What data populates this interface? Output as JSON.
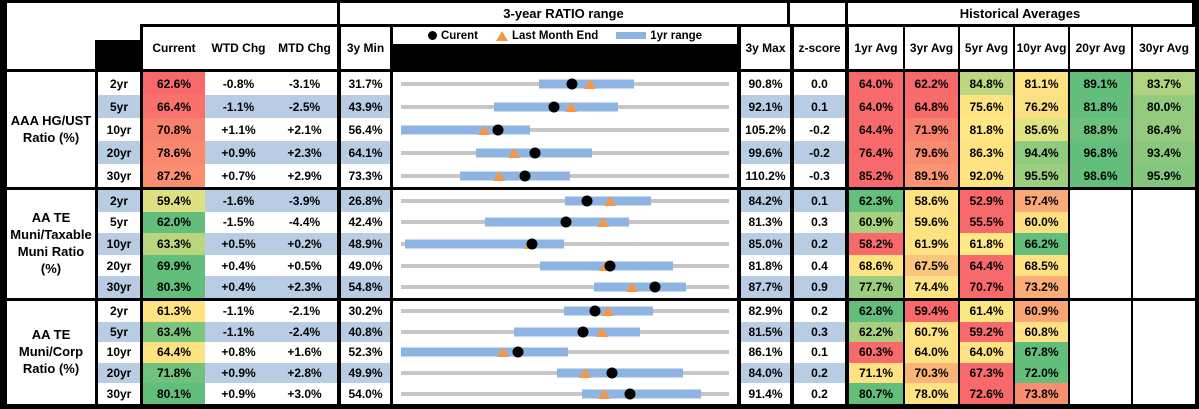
{
  "header": {
    "range_section_title": "3-year RATIO range",
    "hist_section_title": "Historical Averages",
    "col_current": "Current",
    "col_wtd": "WTD Chg",
    "col_mtd": "MTD Chg",
    "col_min": "3y Min",
    "col_max": "3y Max",
    "col_z": "z-score",
    "avg_cols": [
      "1yr Avg",
      "3yr Avg",
      "5yr Avg",
      "10yr Avg",
      "20yr Avg",
      "30yr Avg"
    ],
    "legend": [
      {
        "marker": "black-dot",
        "label": "Curent"
      },
      {
        "marker": "orange-triangle",
        "label": "Last Month End"
      },
      {
        "marker": "blue-bar",
        "label": "1yr range"
      }
    ]
  },
  "colors": {
    "band_blue": "#B8CCE4",
    "range_bar_blue": "#8DB4E2",
    "track_gray": "#C6C6C6",
    "marker_black": "#000000",
    "triangle_orange": "#F79646",
    "scale_red": "#F8696B",
    "scale_yellow": "#FFE383",
    "scale_green": "#63BE7B"
  },
  "chart_data": {
    "type": "table",
    "description": "Ratio table with dot-and-range strip charts; range values in percent",
    "groups": [
      {
        "label_lines": [
          "AAA HG/UST",
          "Ratio (%)"
        ],
        "rows": [
          {
            "tenor": "2yr",
            "current": "62.6%",
            "current_bg": "#F8696B",
            "wtd": "-0.8%",
            "mtd": "-3.1%",
            "min": "31.7%",
            "max": "90.8%",
            "z": "0.0",
            "range": {
              "axis_min": 31.7,
              "axis_max": 90.8,
              "bar_lo": 56.5,
              "bar_hi": 73.7,
              "current": 62.6,
              "last_month": 65.7
            },
            "avgs": [
              [
                "64.0%",
                "#F8696B"
              ],
              [
                "62.2%",
                "#F8696B"
              ],
              [
                "84.8%",
                "#BCD780"
              ],
              [
                "81.1%",
                "#FFE383"
              ],
              [
                "89.1%",
                "#63BE7B"
              ],
              [
                "83.7%",
                "#AFD37F"
              ]
            ]
          },
          {
            "tenor": "5yr",
            "current": "66.4%",
            "current_bg": "#F8716C",
            "wtd": "-1.1%",
            "mtd": "-2.5%",
            "min": "43.9%",
            "max": "92.1%",
            "z": "0.1",
            "range": {
              "axis_min": 43.9,
              "axis_max": 92.1,
              "bar_lo": 57.5,
              "bar_hi": 75.8,
              "current": 66.4,
              "last_month": 68.9
            },
            "avgs": [
              [
                "64.0%",
                "#F8696B"
              ],
              [
                "64.8%",
                "#F86D6C"
              ],
              [
                "75.6%",
                "#FFE383"
              ],
              [
                "76.2%",
                "#FBE083"
              ],
              [
                "81.8%",
                "#63BE7B"
              ],
              [
                "80.0%",
                "#92CB7E"
              ]
            ]
          },
          {
            "tenor": "10yr",
            "current": "70.8%",
            "current_bg": "#F9826F",
            "wtd": "+1.1%",
            "mtd": "+2.1%",
            "min": "56.4%",
            "max": "105.2%",
            "z": "-0.2",
            "range": {
              "axis_min": 56.4,
              "axis_max": 105.2,
              "bar_lo": 56.4,
              "bar_hi": 75.6,
              "current": 70.8,
              "last_month": 68.7
            },
            "avgs": [
              [
                "64.4%",
                "#F8696B"
              ],
              [
                "71.9%",
                "#F8806F"
              ],
              [
                "81.8%",
                "#FEE784"
              ],
              [
                "85.6%",
                "#E0E283"
              ],
              [
                "88.8%",
                "#6CC07C"
              ],
              [
                "86.4%",
                "#94CB7E"
              ]
            ]
          },
          {
            "tenor": "20yr",
            "current": "78.6%",
            "current_bg": "#F9886F",
            "wtd": "+0.9%",
            "mtd": "+2.3%",
            "min": "64.1%",
            "max": "99.6%",
            "z": "-0.2",
            "range": {
              "axis_min": 64.1,
              "axis_max": 99.6,
              "bar_lo": 72.2,
              "bar_hi": 84.8,
              "current": 78.6,
              "last_month": 76.3
            },
            "avgs": [
              [
                "76.4%",
                "#F8696B"
              ],
              [
                "79.6%",
                "#F98B71"
              ],
              [
                "86.3%",
                "#FFE383"
              ],
              [
                "94.4%",
                "#90CA7E"
              ],
              [
                "96.8%",
                "#63BE7B"
              ],
              [
                "93.4%",
                "#8AC87E"
              ]
            ]
          },
          {
            "tenor": "30yr",
            "current": "87.2%",
            "current_bg": "#F98E71",
            "wtd": "+0.7%",
            "mtd": "+2.9%",
            "min": "73.3%",
            "max": "110.2%",
            "z": "-0.3",
            "range": {
              "axis_min": 73.3,
              "axis_max": 110.2,
              "bar_lo": 79.9,
              "bar_hi": 92.3,
              "current": 87.2,
              "last_month": 84.3
            },
            "avgs": [
              [
                "85.2%",
                "#F8696B"
              ],
              [
                "89.1%",
                "#FA9473"
              ],
              [
                "92.0%",
                "#FFE383"
              ],
              [
                "95.5%",
                "#9DCE7F"
              ],
              [
                "98.6%",
                "#63BE7B"
              ],
              [
                "95.9%",
                "#84C67D"
              ]
            ]
          }
        ]
      },
      {
        "label_lines": [
          "AA TE",
          "Muni/Taxable",
          "Muni Ratio",
          "(%)"
        ],
        "rows": [
          {
            "tenor": "2yr",
            "current": "59.4%",
            "current_bg": "#DEE082",
            "wtd": "-1.6%",
            "mtd": "-3.9%",
            "min": "26.8%",
            "max": "84.2%",
            "z": "0.1",
            "range": {
              "axis_min": 26.8,
              "axis_max": 84.2,
              "bar_lo": 55.5,
              "bar_hi": 70.6,
              "current": 59.4,
              "last_month": 63.3
            },
            "avgs": [
              [
                "62.3%",
                "#66BF7B"
              ],
              [
                "58.6%",
                "#FFE383"
              ],
              [
                "52.9%",
                "#F8696B"
              ],
              [
                "57.4%",
                "#FBA976"
              ],
              null,
              null
            ]
          },
          {
            "tenor": "5yr",
            "current": "62.0%",
            "current_bg": "#63BE7B",
            "wtd": "-1.5%",
            "mtd": "-4.4%",
            "min": "42.4%",
            "max": "81.3%",
            "z": "0.3",
            "range": {
              "axis_min": 42.4,
              "axis_max": 81.3,
              "bar_lo": 52.4,
              "bar_hi": 69.5,
              "current": 62.0,
              "last_month": 66.4
            },
            "avgs": [
              [
                "60.9%",
                "#A8D07F"
              ],
              [
                "59.6%",
                "#FFE383"
              ],
              [
                "55.5%",
                "#F8696B"
              ],
              [
                "60.0%",
                "#FEDF81"
              ],
              null,
              null
            ]
          },
          {
            "tenor": "10yr",
            "current": "63.3%",
            "current_bg": "#B9D67F",
            "wtd": "+0.5%",
            "mtd": "+0.2%",
            "min": "48.9%",
            "max": "85.0%",
            "z": "0.2",
            "range": {
              "axis_min": 48.9,
              "axis_max": 85.0,
              "bar_lo": 49.3,
              "bar_hi": 66.8,
              "current": 63.3,
              "last_month": 63.1
            },
            "avgs": [
              [
                "58.2%",
                "#F8696B"
              ],
              [
                "61.9%",
                "#FFE383"
              ],
              [
                "61.8%",
                "#FEE886"
              ],
              [
                "66.2%",
                "#63BE7B"
              ],
              null,
              null
            ]
          },
          {
            "tenor": "20yr",
            "current": "69.9%",
            "current_bg": "#63BE7B",
            "wtd": "+0.4%",
            "mtd": "+0.5%",
            "min": "49.0%",
            "max": "81.8%",
            "z": "0.4",
            "range": {
              "axis_min": 49.0,
              "axis_max": 81.8,
              "bar_lo": 62.9,
              "bar_hi": 76.2,
              "current": 69.9,
              "last_month": 69.4
            },
            "avgs": [
              [
                "68.6%",
                "#FFE383"
              ],
              [
                "67.5%",
                "#FCC57D"
              ],
              [
                "64.4%",
                "#F8696B"
              ],
              [
                "68.5%",
                "#FFE182"
              ],
              null,
              null
            ]
          },
          {
            "tenor": "30yr",
            "current": "80.3%",
            "current_bg": "#63BE7B",
            "wtd": "+0.4%",
            "mtd": "+2.3%",
            "min": "54.8%",
            "max": "87.7%",
            "z": "0.9",
            "range": {
              "axis_min": 54.8,
              "axis_max": 87.7,
              "bar_lo": 74.2,
              "bar_hi": 83.4,
              "current": 80.3,
              "last_month": 78.0
            },
            "avgs": [
              [
                "77.7%",
                "#9BCD7E"
              ],
              [
                "74.4%",
                "#FFE383"
              ],
              [
                "70.7%",
                "#F8696B"
              ],
              [
                "73.2%",
                "#FBAC77"
              ],
              null,
              null
            ]
          }
        ]
      },
      {
        "label_lines": [
          "AA TE",
          "Muni/Corp",
          "Ratio (%)"
        ],
        "rows": [
          {
            "tenor": "2yr",
            "current": "61.3%",
            "current_bg": "#FFE383",
            "wtd": "-1.1%",
            "mtd": "-2.1%",
            "min": "30.2%",
            "max": "82.9%",
            "z": "0.2",
            "range": {
              "axis_min": 30.2,
              "axis_max": 82.9,
              "bar_lo": 56.4,
              "bar_hi": 70.7,
              "current": 61.3,
              "last_month": 63.4
            },
            "avgs": [
              [
                "62.8%",
                "#63BE7B"
              ],
              [
                "59.4%",
                "#F8696B"
              ],
              [
                "61.4%",
                "#FDE784"
              ],
              [
                "60.9%",
                "#FBA576"
              ],
              null,
              null
            ]
          },
          {
            "tenor": "5yr",
            "current": "63.4%",
            "current_bg": "#7BC57D",
            "wtd": "-1.1%",
            "mtd": "-2.4%",
            "min": "40.8%",
            "max": "81.5%",
            "z": "0.3",
            "range": {
              "axis_min": 40.8,
              "axis_max": 81.5,
              "bar_lo": 54.8,
              "bar_hi": 70.4,
              "current": 63.4,
              "last_month": 65.8
            },
            "avgs": [
              [
                "62.2%",
                "#A8D07F"
              ],
              [
                "60.7%",
                "#FFE383"
              ],
              [
                "59.2%",
                "#F8696B"
              ],
              [
                "60.8%",
                "#FFE082"
              ],
              null,
              null
            ]
          },
          {
            "tenor": "10yr",
            "current": "64.4%",
            "current_bg": "#FFE383",
            "wtd": "+0.8%",
            "mtd": "+1.6%",
            "min": "52.3%",
            "max": "86.1%",
            "z": "0.1",
            "range": {
              "axis_min": 52.3,
              "axis_max": 86.1,
              "bar_lo": 52.3,
              "bar_hi": 69.5,
              "current": 64.4,
              "last_month": 62.8
            },
            "avgs": [
              [
                "60.3%",
                "#F8696B"
              ],
              [
                "64.0%",
                "#FFE383"
              ],
              [
                "64.0%",
                "#FFE383"
              ],
              [
                "67.8%",
                "#63BE7B"
              ],
              null,
              null
            ]
          },
          {
            "tenor": "20yr",
            "current": "71.8%",
            "current_bg": "#6FC17C",
            "wtd": "+0.9%",
            "mtd": "+2.8%",
            "min": "49.9%",
            "max": "84.0%",
            "z": "0.2",
            "range": {
              "axis_min": 49.9,
              "axis_max": 84.0,
              "bar_lo": 66.1,
              "bar_hi": 79.2,
              "current": 71.8,
              "last_month": 69.0
            },
            "avgs": [
              [
                "71.1%",
                "#FFE383"
              ],
              [
                "70.3%",
                "#FBB478"
              ],
              [
                "67.3%",
                "#F8696B"
              ],
              [
                "72.0%",
                "#63BE7B"
              ],
              null,
              null
            ]
          },
          {
            "tenor": "30yr",
            "current": "80.1%",
            "current_bg": "#63BE7B",
            "wtd": "+0.9%",
            "mtd": "+3.0%",
            "min": "54.0%",
            "max": "91.4%",
            "z": "0.2",
            "range": {
              "axis_min": 54.0,
              "axis_max": 91.4,
              "bar_lo": 74.6,
              "bar_hi": 88.2,
              "current": 80.1,
              "last_month": 77.1
            },
            "avgs": [
              [
                "80.7%",
                "#63BE7B"
              ],
              [
                "78.0%",
                "#FFE383"
              ],
              [
                "72.6%",
                "#F8696B"
              ],
              [
                "73.8%",
                "#F98D70"
              ],
              null,
              null
            ]
          }
        ]
      }
    ]
  }
}
